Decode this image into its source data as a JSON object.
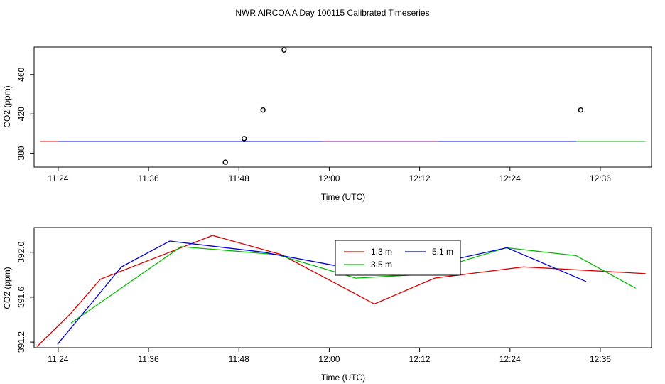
{
  "title": "NWR AIRCOA A  Day 100115  Calibrated Timeseries",
  "chart_data": [
    {
      "type": "line",
      "xlabel": "Time (UTC)",
      "ylabel": "CO2 (ppm)",
      "x_ticks": [
        "11:24",
        "11:36",
        "11:48",
        "12:00",
        "12:12",
        "12:24",
        "12:36"
      ],
      "x_tick_values": [
        684,
        696,
        708,
        720,
        732,
        744,
        756
      ],
      "xlim": [
        680.8,
        762.8
      ],
      "y_ticks": [
        380,
        420,
        460
      ],
      "ylim": [
        366,
        488
      ],
      "grid": false,
      "series": [
        {
          "color": "#ff0000",
          "x": [
            681.6,
            687.5,
            699.7,
            710.9,
            725.1,
            733.2,
            756.0
          ],
          "y": [
            392,
            392,
            392,
            392,
            392,
            392,
            392
          ]
        },
        {
          "color": "#00bb00",
          "x": [
            694.6,
            715.6,
            724.5,
            735.0,
            754.1,
            762.0
          ],
          "y": [
            392,
            392,
            392,
            392,
            392,
            392
          ]
        },
        {
          "color": "#0000ff",
          "x": [
            684.0,
            705.0,
            718.7,
            722.0,
            728.5,
            752.8
          ],
          "y": [
            392,
            392,
            392,
            392,
            392,
            392
          ]
        },
        {
          "color": "#880088",
          "x": [
            719.0,
            734.5
          ],
          "y": [
            392,
            392
          ]
        }
      ],
      "points": {
        "marker": "circle",
        "color": "#000000",
        "x": [
          706.2,
          708.7,
          711.2,
          714.0,
          753.4
        ],
        "y": [
          371,
          395,
          424,
          485,
          424
        ]
      }
    },
    {
      "type": "line",
      "xlabel": "Time (UTC)",
      "ylabel": "CO2 (ppm)",
      "x_ticks": [
        "11:24",
        "11:36",
        "11:48",
        "12:00",
        "12:12",
        "12:24",
        "12:36"
      ],
      "x_tick_values": [
        684,
        696,
        708,
        720,
        732,
        744,
        756
      ],
      "xlim": [
        680.8,
        762.8
      ],
      "y_ticks": [
        "391.2",
        "391.6",
        "392.0"
      ],
      "y_tick_values": [
        391.2,
        391.6,
        392.0
      ],
      "ylim": [
        391.15,
        392.22
      ],
      "grid": false,
      "legend_position": "top-center",
      "series": [
        {
          "name": "1.3 m",
          "color": "#dd0000",
          "x": [
            681.2,
            685.6,
            689.6,
            704.5,
            713.6,
            726.0,
            734.0,
            745.8,
            762.0
          ],
          "y": [
            391.16,
            391.45,
            391.76,
            392.15,
            391.98,
            391.54,
            391.77,
            391.87,
            391.81
          ]
        },
        {
          "name": "3.5 m",
          "color": "#00bb00",
          "x": [
            685.7,
            700.3,
            713.0,
            723.5,
            731.7,
            743.5,
            752.8,
            760.7
          ],
          "y": [
            391.37,
            392.05,
            391.98,
            391.77,
            391.8,
            392.04,
            391.97,
            391.68
          ]
        },
        {
          "name": "5.1 m",
          "color": "#0000dd",
          "x": [
            683.9,
            692.4,
            698.8,
            711.3,
            720.9,
            726.3,
            733.4,
            743.6,
            754.1
          ],
          "y": [
            391.18,
            391.87,
            392.1,
            392.0,
            391.88,
            391.89,
            391.89,
            392.04,
            391.74
          ]
        }
      ]
    }
  ]
}
